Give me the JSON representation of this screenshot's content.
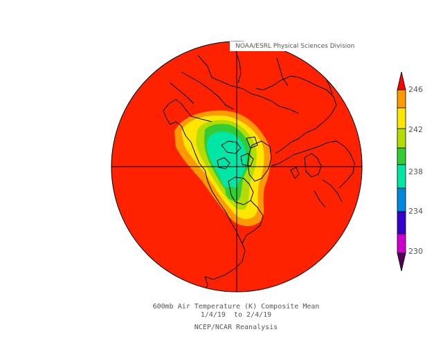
{
  "credit": "NOAA/ESRL Physical Sciences Division",
  "caption": {
    "line1": "600mb Air Temperature (K) Composite Mean",
    "line2": "1/4/19  to 2/4/19",
    "line3": "NCEP/NCAR Reanalysis"
  },
  "colorbar": {
    "labels": [
      "246",
      "242",
      "238",
      "234",
      "230"
    ],
    "colors": [
      "#ff0000",
      "#ff9900",
      "#ffe600",
      "#b3dc00",
      "#33cc33",
      "#00e6a6",
      "#0088dd",
      "#0044ff",
      "#3300cc",
      "#cc00cc",
      "#550055"
    ]
  },
  "map": {
    "projection": "polar-stereographic-north",
    "background_color": "#ff2200",
    "contour_colors": [
      "#ff9900",
      "#ffe600",
      "#b3dc00",
      "#33cc33",
      "#00e6a6"
    ]
  }
}
